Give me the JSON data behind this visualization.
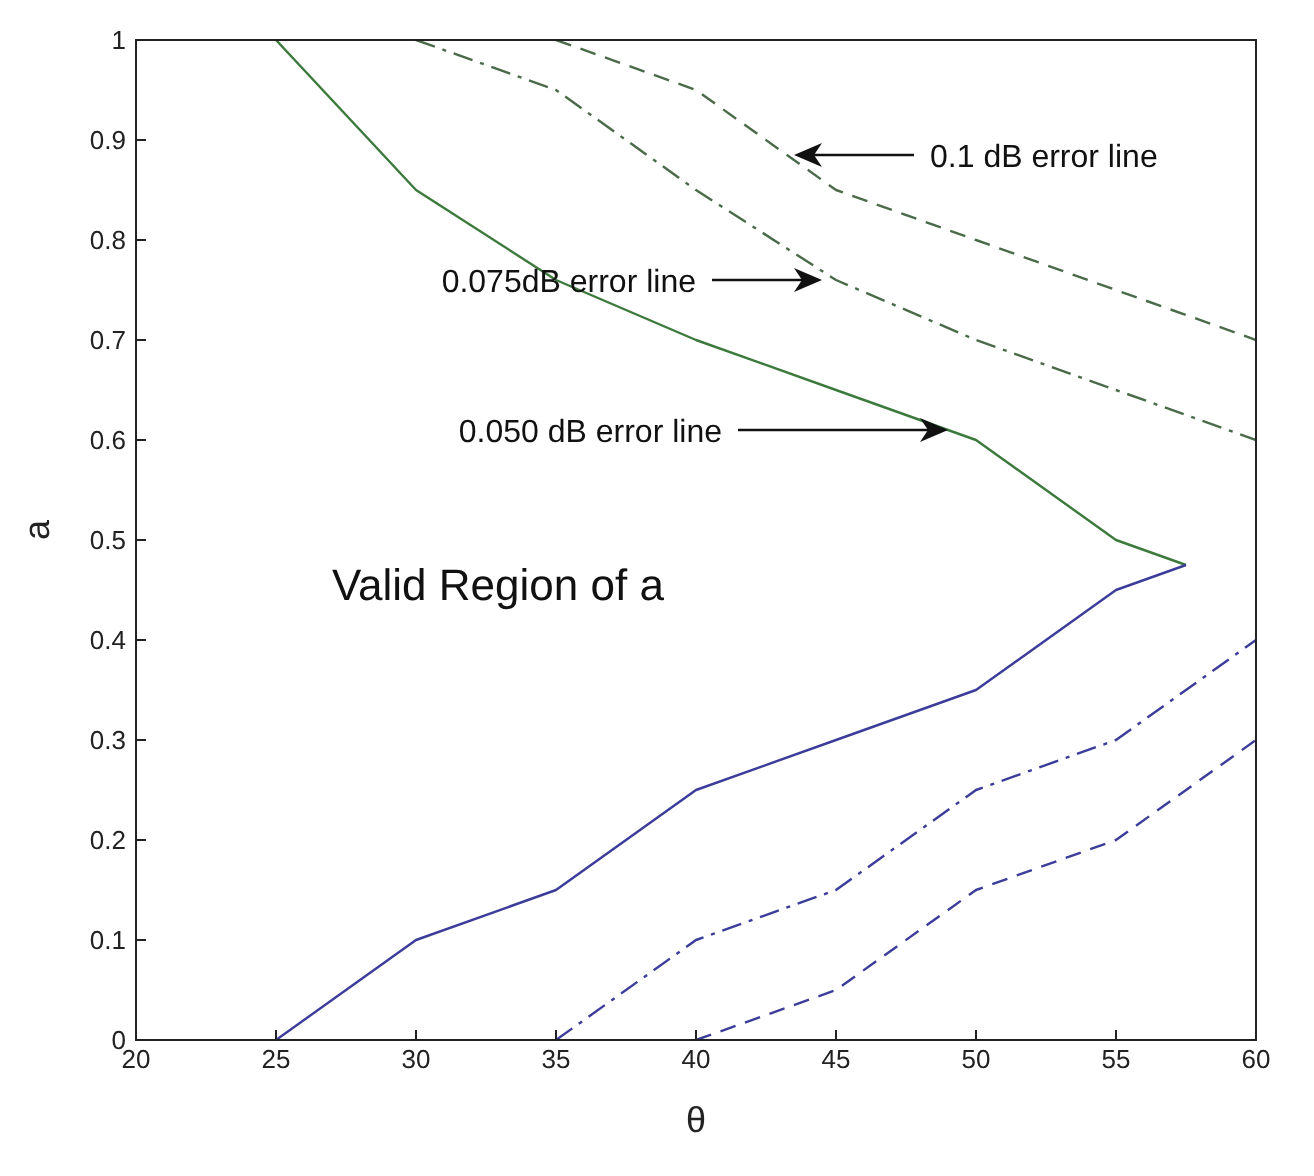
{
  "chart_data": {
    "type": "line",
    "xlabel": "θ",
    "ylabel": "a",
    "xlim": [
      20,
      60
    ],
    "ylim": [
      0,
      1
    ],
    "xticks": [
      20,
      25,
      30,
      35,
      40,
      45,
      50,
      55,
      60
    ],
    "yticks": [
      0,
      0.1,
      0.2,
      0.3,
      0.4,
      0.5,
      0.6,
      0.7,
      0.8,
      0.9,
      1
    ],
    "marker": "none",
    "series": [
      {
        "color": "#3c7a3c",
        "line_style": "solid",
        "x": [
          25,
          30,
          35,
          40,
          45,
          50,
          55,
          57.5
        ],
        "values": [
          1,
          0.85,
          0.76,
          0.7,
          0.65,
          0.6,
          0.5,
          0.475
        ]
      },
      {
        "color": "#3c3c9a",
        "line_style": "solid",
        "x": [
          25,
          30,
          35,
          40,
          45,
          50,
          55,
          57.5
        ],
        "values": [
          0,
          0.1,
          0.15,
          0.25,
          0.3,
          0.35,
          0.45,
          0.475
        ]
      },
      {
        "color": "#4a6a4a",
        "line_style": "dashdot",
        "x": [
          30,
          35,
          40,
          45,
          50,
          55,
          60
        ],
        "values": [
          1,
          0.95,
          0.85,
          0.76,
          0.7,
          0.65,
          0.6
        ]
      },
      {
        "color": "#3c3c9a",
        "line_style": "dashdot",
        "x": [
          35,
          40,
          45,
          50,
          55,
          60
        ],
        "values": [
          0,
          0.1,
          0.15,
          0.25,
          0.3,
          0.4
        ]
      },
      {
        "color": "#4a6a4a",
        "line_style": "dashed",
        "x": [
          35,
          40,
          45,
          50,
          55,
          60
        ],
        "values": [
          1,
          0.95,
          0.85,
          0.8,
          0.75,
          0.7
        ]
      },
      {
        "color": "#3c3c9a",
        "line_style": "dashed",
        "x": [
          40,
          45,
          50,
          55,
          60
        ],
        "values": [
          0,
          0.05,
          0.15,
          0.2,
          0.3
        ]
      }
    ],
    "annotations": [
      {
        "text": "0.1 dB error line",
        "x": 43.5,
        "y": 0.885
      },
      {
        "text": "0.075dB error line",
        "x": 44.5,
        "y": 0.76
      },
      {
        "text": "0.050 dB error line",
        "x": 49,
        "y": 0.61
      },
      "Valid Region of a"
    ]
  }
}
